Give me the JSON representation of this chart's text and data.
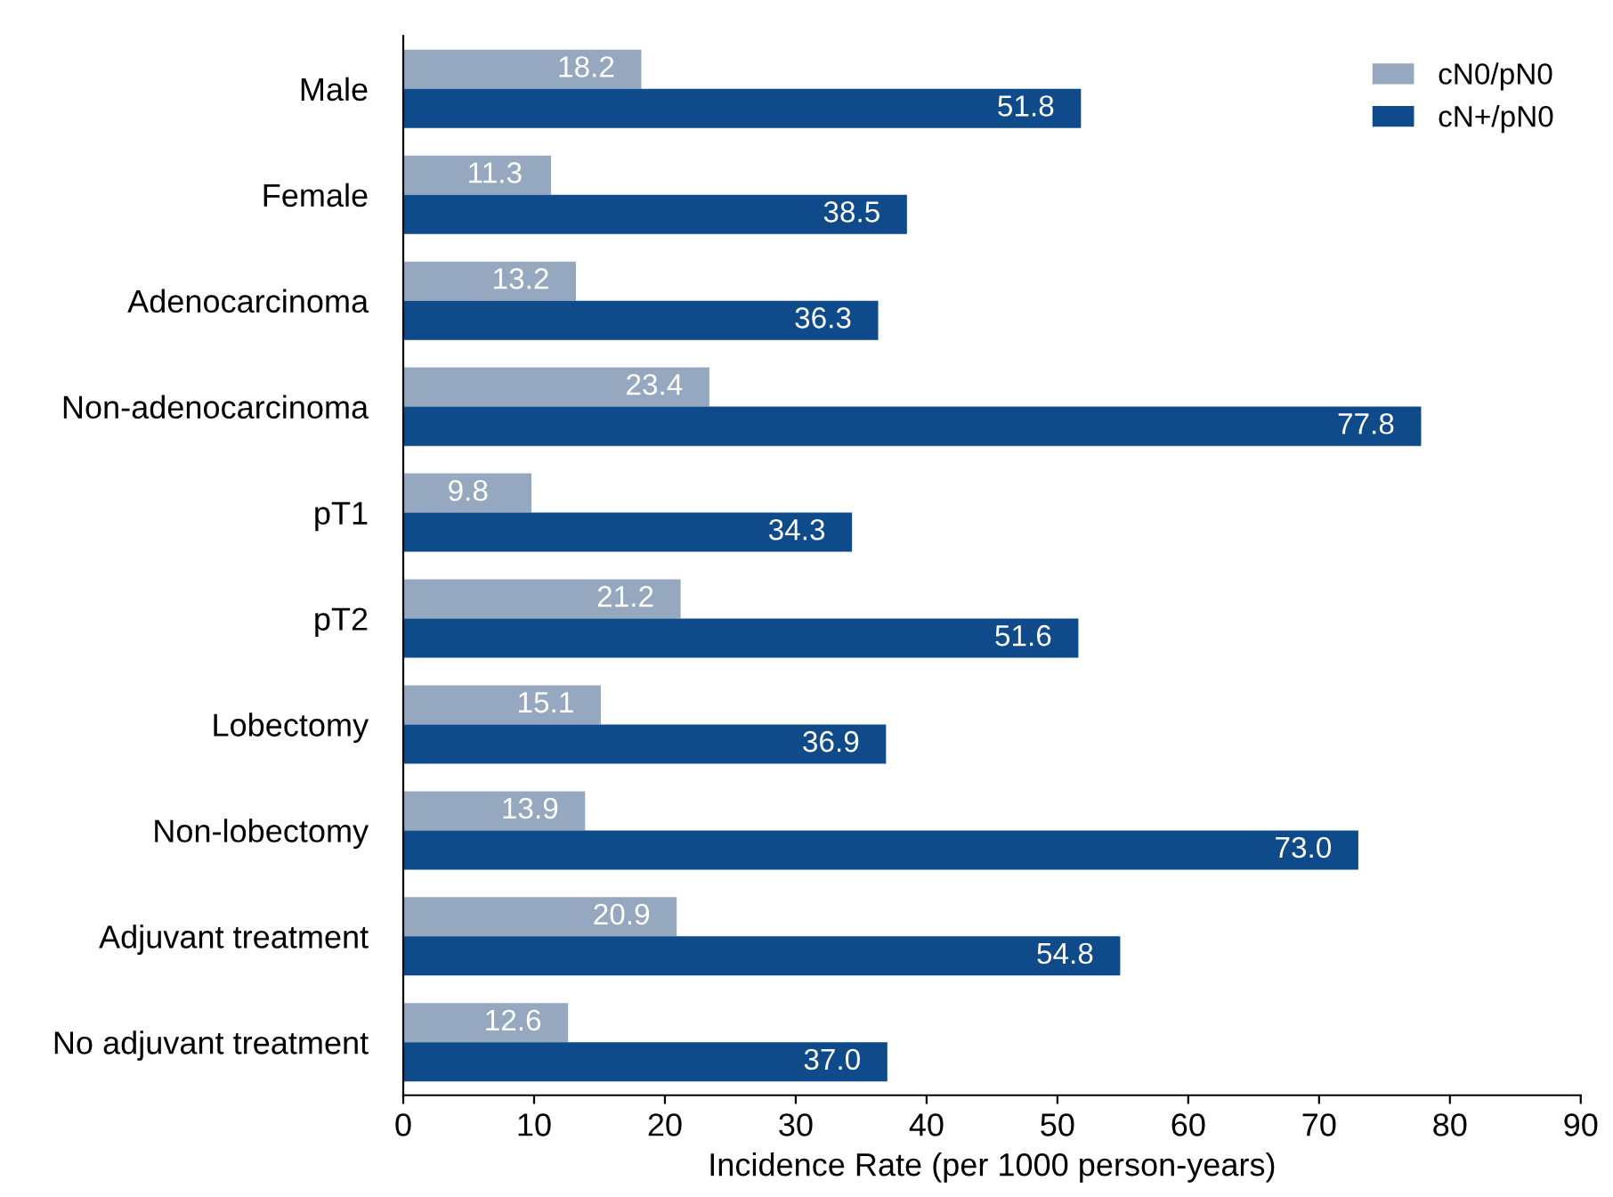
{
  "chart_data": {
    "type": "bar",
    "orientation": "horizontal",
    "xlabel": "Incidence Rate (per 1000 person-years)",
    "categories": [
      "Male",
      "Female",
      "Adenocarcinoma",
      "Non-adenocarcinoma",
      "pT1",
      "pT2",
      "Lobectomy",
      "Non-lobectomy",
      "Adjuvant treatment",
      "No adjuvant treatment"
    ],
    "series": [
      {
        "name": "cN0/pN0",
        "color": "#95a8c0",
        "values": [
          18.2,
          11.3,
          13.2,
          23.4,
          9.8,
          21.2,
          15.1,
          13.9,
          20.9,
          12.6
        ],
        "value_labels": [
          "18.2",
          "11.3",
          "13.2",
          "23.4",
          "9.8",
          "21.2",
          "15.1",
          "13.9",
          "20.9",
          "12.6"
        ]
      },
      {
        "name": "cN+/pN0",
        "color": "#0f4a8a",
        "values": [
          51.8,
          38.5,
          36.3,
          77.8,
          34.3,
          51.6,
          36.9,
          73.0,
          54.8,
          37.0
        ],
        "value_labels": [
          "51.8",
          "38.5",
          "36.3",
          "77.8",
          "34.3",
          "51.6",
          "36.9",
          "73.0",
          "54.8",
          "37.0"
        ]
      }
    ],
    "xlim": [
      0,
      90
    ],
    "xticks": [
      0,
      10,
      20,
      30,
      40,
      50,
      60,
      70,
      80,
      90
    ],
    "grid": false,
    "legend": "top right"
  }
}
